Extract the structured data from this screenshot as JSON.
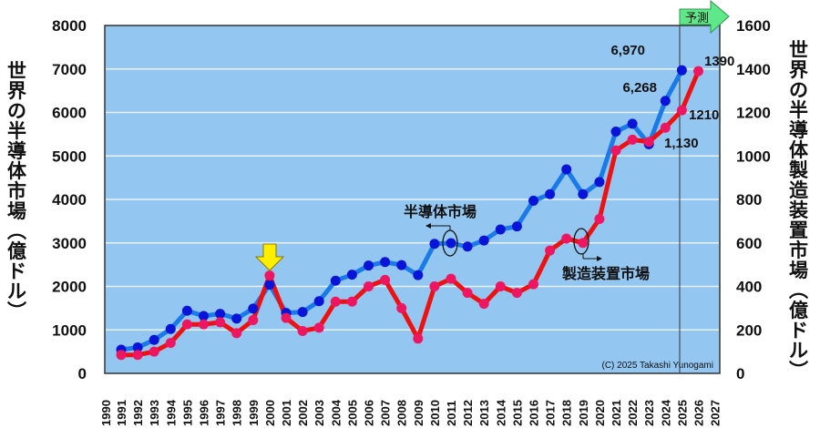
{
  "chart_data": {
    "type": "line",
    "x": [
      1991,
      1992,
      1993,
      1994,
      1995,
      1996,
      1997,
      1998,
      1999,
      2000,
      2001,
      2002,
      2003,
      2004,
      2005,
      2006,
      2007,
      2008,
      2009,
      2010,
      2011,
      2012,
      2013,
      2014,
      2015,
      2016,
      2017,
      2018,
      2019,
      2020,
      2021,
      2022,
      2023,
      2024,
      2025,
      2026
    ],
    "x_ticks": [
      "1990",
      "1991",
      "1992",
      "1993",
      "1994",
      "1995",
      "1996",
      "1997",
      "1998",
      "1999",
      "2000",
      "2001",
      "2002",
      "2003",
      "2004",
      "2005",
      "2006",
      "2007",
      "2008",
      "2009",
      "2010",
      "2011",
      "2012",
      "2013",
      "2014",
      "2015",
      "2016",
      "2017",
      "2018",
      "2019",
      "2020",
      "2021",
      "2022",
      "2023",
      "2024",
      "2025",
      "2026",
      "2027"
    ],
    "series": [
      {
        "name": "半導体市場",
        "axis": "left",
        "color": "#1a7ae8",
        "marker_color": "#0a14d8",
        "values": [
          545,
          596,
          770,
          1020,
          1440,
          1320,
          1370,
          1260,
          1490,
          2040,
          1390,
          1410,
          1660,
          2130,
          2270,
          2480,
          2560,
          2490,
          2260,
          2980,
          2996,
          2916,
          3056,
          3310,
          3380,
          3970,
          4120,
          4690,
          4120,
          4400,
          5560,
          5740,
          5270,
          6268,
          6970,
          null
        ]
      },
      {
        "name": "製造装置市場",
        "axis": "right",
        "color": "#ee1111",
        "marker_color": "#ee1660",
        "values": [
          85,
          85,
          100,
          140,
          225,
          225,
          235,
          185,
          245,
          450,
          255,
          195,
          210,
          330,
          330,
          400,
          430,
          300,
          160,
          400,
          435,
          370,
          320,
          400,
          370,
          410,
          565,
          620,
          600,
          710,
          1025,
          1075,
          1065,
          1130,
          1210,
          1390
        ]
      }
    ],
    "y_left": {
      "label": "世界の半導体市場（億ドル）",
      "lim": [
        0,
        8000
      ],
      "ticks": [
        "0",
        "1000",
        "2000",
        "3000",
        "4000",
        "5000",
        "6000",
        "7000",
        "8000"
      ]
    },
    "y_right": {
      "label": "世界の半導体製造装置市場（億ドル）",
      "lim": [
        0,
        1600
      ],
      "ticks": [
        "0",
        "200",
        "400",
        "600",
        "800",
        "1000",
        "1200",
        "1400",
        "1600"
      ]
    },
    "grid": true,
    "annotations": {
      "blue_2025": "6,970",
      "blue_2024": "6,268",
      "red_2026": "1390",
      "red_2025": "1210",
      "red_2024": "1,130",
      "forecast": "予測",
      "semi_label": "半導体市場",
      "equip_label": "製造装置市場",
      "copyright": "(C)  2025 Takashi Yunogami"
    },
    "highlight_year": 2000
  }
}
